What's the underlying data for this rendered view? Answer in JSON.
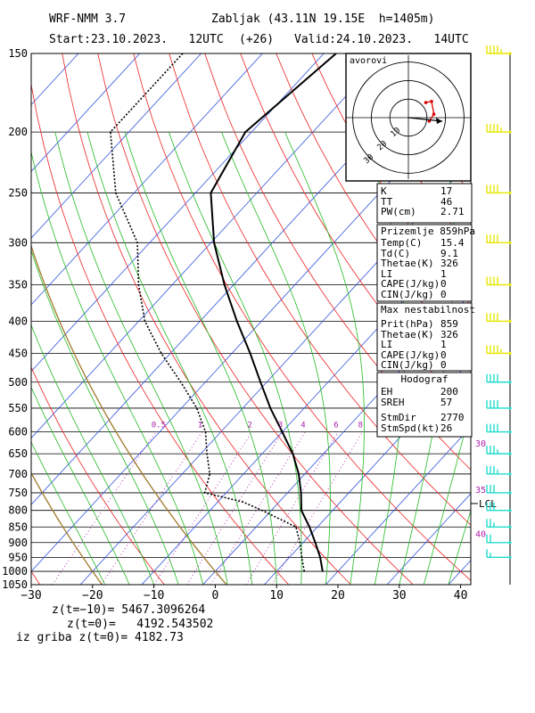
{
  "header": {
    "model": "WRF-NMM 3.7",
    "station": "Zabljak (43.11N 19.15E  h=1405m)",
    "start": "Start:23.10.2023.   12UTC",
    "lead": "(+26)",
    "valid": "Valid:24.10.2023.   14UTC"
  },
  "colors": {
    "isotherm": "#3355dd",
    "dry_adiabat": "#ee2222",
    "moist_adiabat": "#22bb22",
    "mixing_ratio": "#aa22aa",
    "dry_adiabat_highlight": "#a07a2a",
    "temperature": "#000000",
    "dewpoint": "#000000",
    "wind_barb": "#e6e600",
    "wind_barb_low": "#22ddcc"
  },
  "chart_data": {
    "type": "skew-t",
    "xlim": [
      -30,
      42
    ],
    "ylim": [
      1050,
      150
    ],
    "x_ticks": [
      "−30",
      "−20",
      "−10",
      "0",
      "10",
      "20",
      "30",
      "40"
    ],
    "x_tick_values": [
      -30,
      -20,
      -10,
      0,
      10,
      20,
      30,
      40
    ],
    "pressure_levels": [
      "150",
      "200",
      "250",
      "300",
      "350",
      "400",
      "450",
      "500",
      "550",
      "600",
      "650",
      "700",
      "750",
      "800",
      "850",
      "900",
      "950",
      "1000",
      "1050"
    ],
    "pressure_values": [
      150,
      200,
      250,
      300,
      350,
      400,
      450,
      500,
      550,
      600,
      650,
      700,
      750,
      800,
      850,
      900,
      950,
      1000,
      1050
    ],
    "mixing_ratio_labels": [
      "0.5",
      "1",
      "2",
      "3",
      "4",
      "6",
      "8"
    ],
    "mixing_ratio_values": [
      0.5,
      1,
      2,
      3,
      4,
      6,
      8
    ],
    "temperature_profile": [
      {
        "p": 1000,
        "t": 17.5
      },
      {
        "p": 950,
        "t": 15.0
      },
      {
        "p": 900,
        "t": 12.0
      },
      {
        "p": 850,
        "t": 8.7
      },
      {
        "p": 800,
        "t": 4.9
      },
      {
        "p": 750,
        "t": 2.2
      },
      {
        "p": 700,
        "t": -1.0
      },
      {
        "p": 650,
        "t": -5.0
      },
      {
        "p": 600,
        "t": -10.0
      },
      {
        "p": 550,
        "t": -15.5
      },
      {
        "p": 500,
        "t": -21.0
      },
      {
        "p": 450,
        "t": -27.0
      },
      {
        "p": 400,
        "t": -34.0
      },
      {
        "p": 350,
        "t": -41.5
      },
      {
        "p": 300,
        "t": -49.5
      },
      {
        "p": 250,
        "t": -57.5
      },
      {
        "p": 200,
        "t": -61.0
      },
      {
        "p": 150,
        "t": -58.0
      }
    ],
    "dewpoint_profile": [
      {
        "p": 1000,
        "t": 14.5
      },
      {
        "p": 950,
        "t": 12.0
      },
      {
        "p": 900,
        "t": 9.5
      },
      {
        "p": 850,
        "t": 6.5
      },
      {
        "p": 800,
        "t": -1.5
      },
      {
        "p": 775,
        "t": -6.0
      },
      {
        "p": 750,
        "t": -13.5
      },
      {
        "p": 700,
        "t": -15.5
      },
      {
        "p": 650,
        "t": -19.0
      },
      {
        "p": 600,
        "t": -22.5
      },
      {
        "p": 550,
        "t": -27.5
      },
      {
        "p": 500,
        "t": -34.0
      },
      {
        "p": 450,
        "t": -41.5
      },
      {
        "p": 400,
        "t": -49.0
      },
      {
        "p": 350,
        "t": -55.5
      },
      {
        "p": 300,
        "t": -62.0
      },
      {
        "p": 250,
        "t": -73.0
      },
      {
        "p": 200,
        "t": -83.0
      },
      {
        "p": 150,
        "t": -83.0
      }
    ],
    "lcl_label": "LCL",
    "lcl_pressure": 780,
    "wind_speed_labels": [
      {
        "label": "30",
        "p": 625
      },
      {
        "label": "35",
        "p": 740
      },
      {
        "label": "40",
        "p": 870
      }
    ],
    "wind_barbs": [
      {
        "p": 150,
        "dir": 270,
        "spd": 45
      },
      {
        "p": 200,
        "dir": 270,
        "spd": 45
      },
      {
        "p": 250,
        "dir": 270,
        "spd": 40
      },
      {
        "p": 300,
        "dir": 270,
        "spd": 40
      },
      {
        "p": 350,
        "dir": 275,
        "spd": 40
      },
      {
        "p": 400,
        "dir": 275,
        "spd": 40
      },
      {
        "p": 450,
        "dir": 275,
        "spd": 45
      },
      {
        "p": 500,
        "dir": 275,
        "spd": 40
      },
      {
        "p": 550,
        "dir": 275,
        "spd": 40
      },
      {
        "p": 600,
        "dir": 280,
        "spd": 40
      },
      {
        "p": 650,
        "dir": 280,
        "spd": 35
      },
      {
        "p": 700,
        "dir": 285,
        "spd": 35
      },
      {
        "p": 750,
        "dir": 285,
        "spd": 30
      },
      {
        "p": 800,
        "dir": 290,
        "spd": 30
      },
      {
        "p": 850,
        "dir": 300,
        "spd": 25
      },
      {
        "p": 900,
        "dir": 310,
        "spd": 20
      },
      {
        "p": 950,
        "dir": 320,
        "spd": 15
      }
    ],
    "hodograph": {
      "label": "avorovi",
      "ring_labels": [
        "10",
        "20",
        "30"
      ],
      "points": [
        {
          "u": 18,
          "v": -3
        },
        {
          "u": 22,
          "v": 3
        },
        {
          "u": 20,
          "v": 14
        },
        {
          "u": 15,
          "v": 13
        }
      ]
    }
  },
  "indices": {
    "basic": [
      {
        "k": "K",
        "v": "17"
      },
      {
        "k": "TT",
        "v": "46"
      },
      {
        "k": "PW(cm)",
        "v": "2.71"
      }
    ],
    "surface_title": "Prizemlje 859hPa",
    "surface": [
      {
        "k": "Temp(C)",
        "v": "15.4"
      },
      {
        "k": "Td(C)",
        "v": "9.1"
      },
      {
        "k": "Thetae(K)",
        "v": "326"
      },
      {
        "k": "LI",
        "v": "1"
      },
      {
        "k": "CAPE(J/kg)",
        "v": "0"
      },
      {
        "k": "CIN(J/kg)",
        "v": "0"
      }
    ],
    "unstable_title": "Max nestabilnost",
    "unstable": [
      {
        "k": "Prit(hPa)",
        "v": "859"
      },
      {
        "k": "Thetae(K)",
        "v": "326"
      },
      {
        "k": "LI",
        "v": "1"
      },
      {
        "k": "CAPE(J/kg)",
        "v": "0"
      },
      {
        "k": "CIN(J/kg)",
        "v": "0"
      }
    ],
    "hodo_title": "Hodograf",
    "hodo": [
      {
        "k": "EH",
        "v": "200"
      },
      {
        "k": "SREH",
        "v": "57"
      },
      {
        "k": "StmDir",
        "v": "2770"
      },
      {
        "k": "StmSpd(kt)",
        "v": "26"
      }
    ]
  },
  "footer": {
    "line1": "z(t=−10)= 5467.3096264",
    "line2": "z(t=0)=   4192.543502",
    "line3": "iz griba z(t=0)= 4182.73"
  }
}
